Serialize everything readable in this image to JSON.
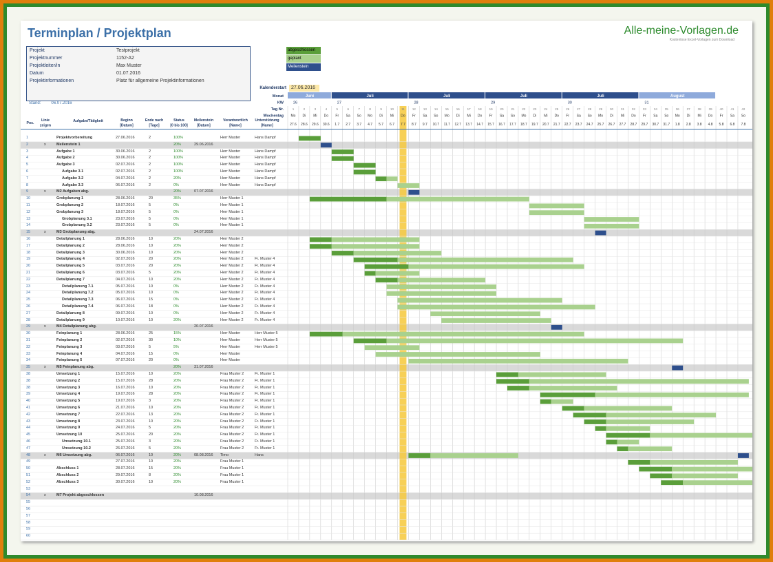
{
  "title": "Terminplan / Projektplan",
  "brand": "Alle-meine-Vorlagen.de",
  "brand_sub": "Kostenlose Excel-Vorlagen zum Download",
  "info": [
    {
      "k": "Projekt",
      "v": "Testprojekt"
    },
    {
      "k": "Projektnummer",
      "v": "1152-A2"
    },
    {
      "k": "Projektleiter/in",
      "v": "Max Muster"
    },
    {
      "k": "Datum",
      "v": "01.07.2016"
    },
    {
      "k": "Projektinformationen",
      "v": "Platz für allgemeine Projektinformationen"
    }
  ],
  "stand_label": "Stand:",
  "stand_value": "06.07.2016",
  "legend": {
    "done": "abgeschlossen",
    "planned": "geplant",
    "milestone": "Meilenstein"
  },
  "kalenderstart_label": "Kalenderstart",
  "kalenderstart_value": "27.06.2016",
  "row_labels": {
    "monat": "Monat",
    "kw": "KW",
    "tag": "Tag Nr.",
    "wochentag": "Wochentag"
  },
  "headers": [
    "Pos.",
    "Linie zeigen",
    "Aufgabe/Tätigkeit",
    "Beginn [Datum]",
    "Ende nach [Tage]",
    "Status [0 bis 100]",
    "Meilenstein [Datum]",
    "Verantwortlich [Name]",
    "Unterstützung [Name]"
  ],
  "months": [
    {
      "name": "Juni",
      "days": 4
    },
    {
      "name": "Juli",
      "days": 7
    },
    {
      "name": "Juli",
      "days": 7
    },
    {
      "name": "Juli",
      "days": 7
    },
    {
      "name": "Juli",
      "days": 7
    },
    {
      "name": "August",
      "days": 7
    }
  ],
  "kw": [
    "26",
    "27",
    "28",
    "29",
    "30",
    "31"
  ],
  "days": [
    {
      "n": "1",
      "w": "Mo",
      "d": "27.6"
    },
    {
      "n": "2",
      "w": "Di",
      "d": "28.6"
    },
    {
      "n": "3",
      "w": "Mi",
      "d": "29.6"
    },
    {
      "n": "4",
      "w": "Do",
      "d": "30.6"
    },
    {
      "n": "5",
      "w": "Fr",
      "d": "1.7"
    },
    {
      "n": "6",
      "w": "Sa",
      "d": "2.7"
    },
    {
      "n": "7",
      "w": "So",
      "d": "3.7"
    },
    {
      "n": "8",
      "w": "Mo",
      "d": "4.7"
    },
    {
      "n": "9",
      "w": "Di",
      "d": "5.7"
    },
    {
      "n": "10",
      "w": "Mi",
      "d": "6.7"
    },
    {
      "n": "11",
      "w": "Do",
      "d": "7.7"
    },
    {
      "n": "12",
      "w": "Fr",
      "d": "8.7"
    },
    {
      "n": "13",
      "w": "Sa",
      "d": "9.7"
    },
    {
      "n": "14",
      "w": "So",
      "d": "10.7"
    },
    {
      "n": "15",
      "w": "Mo",
      "d": "11.7"
    },
    {
      "n": "16",
      "w": "Di",
      "d": "12.7"
    },
    {
      "n": "17",
      "w": "Mi",
      "d": "13.7"
    },
    {
      "n": "18",
      "w": "Do",
      "d": "14.7"
    },
    {
      "n": "19",
      "w": "Fr",
      "d": "15.7"
    },
    {
      "n": "20",
      "w": "Sa",
      "d": "16.7"
    },
    {
      "n": "21",
      "w": "So",
      "d": "17.7"
    },
    {
      "n": "22",
      "w": "Mo",
      "d": "18.7"
    },
    {
      "n": "23",
      "w": "Di",
      "d": "19.7"
    },
    {
      "n": "24",
      "w": "Mi",
      "d": "20.7"
    },
    {
      "n": "25",
      "w": "Do",
      "d": "21.7"
    },
    {
      "n": "26",
      "w": "Fr",
      "d": "22.7"
    },
    {
      "n": "27",
      "w": "Sa",
      "d": "23.7"
    },
    {
      "n": "28",
      "w": "So",
      "d": "24.7"
    },
    {
      "n": "29",
      "w": "Mo",
      "d": "25.7"
    },
    {
      "n": "30",
      "w": "Di",
      "d": "26.7"
    },
    {
      "n": "31",
      "w": "Mi",
      "d": "27.7"
    },
    {
      "n": "32",
      "w": "Do",
      "d": "28.7"
    },
    {
      "n": "33",
      "w": "Fr",
      "d": "29.7"
    },
    {
      "n": "34",
      "w": "Sa",
      "d": "30.7"
    },
    {
      "n": "35",
      "w": "So",
      "d": "31.7"
    },
    {
      "n": "36",
      "w": "Mo",
      "d": "1.8"
    },
    {
      "n": "37",
      "w": "Di",
      "d": "2.8"
    },
    {
      "n": "38",
      "w": "Mi",
      "d": "3.8"
    },
    {
      "n": "39",
      "w": "Do",
      "d": "4.8"
    },
    {
      "n": "40",
      "w": "Fr",
      "d": "5.8"
    },
    {
      "n": "41",
      "w": "Sa",
      "d": "6.8"
    },
    {
      "n": "42",
      "w": "So",
      "d": "7.8"
    }
  ],
  "today_index": 10,
  "rows": [
    {
      "p": "1",
      "t": "Projektvorbereitung",
      "b": "27.06.2016",
      "e": "2",
      "s": "100%",
      "v": "Herr Muster",
      "u": "Hans Dampf",
      "bars": [
        [
          1,
          2,
          "d"
        ]
      ]
    },
    {
      "p": "2",
      "x": "x",
      "t": "Meilenstein 1",
      "s": "20%",
      "m": "29.06.2016",
      "ms": 1,
      "bars": [
        [
          3,
          1,
          "m"
        ]
      ]
    },
    {
      "p": "3",
      "t": "Aufgabe 1",
      "b": "30.06.2016",
      "e": "2",
      "s": "100%",
      "v": "Herr Muster",
      "u": "Hans Dampf",
      "bars": [
        [
          4,
          2,
          "d"
        ]
      ]
    },
    {
      "p": "4",
      "t": "Aufgabe 2",
      "b": "30.06.2016",
      "e": "2",
      "s": "100%",
      "v": "Herr Muster",
      "u": "Hans Dampf",
      "bars": [
        [
          4,
          2,
          "d"
        ]
      ]
    },
    {
      "p": "5",
      "t": "Aufgabe 3",
      "b": "02.07.2016",
      "e": "2",
      "s": "100%",
      "v": "Herr Muster",
      "u": "Hans Dampf",
      "bars": [
        [
          6,
          2,
          "d"
        ]
      ]
    },
    {
      "p": "6",
      "i": 1,
      "t": "Aufgabe 3.1",
      "b": "02.07.2016",
      "e": "2",
      "s": "100%",
      "v": "Herr Muster",
      "u": "Hans Dampf",
      "bars": [
        [
          6,
          2,
          "d"
        ]
      ]
    },
    {
      "p": "7",
      "i": 1,
      "t": "Aufgabe 3.2",
      "b": "04.07.2016",
      "e": "2",
      "s": "20%",
      "v": "Herr Muster",
      "u": "Hans Dampf",
      "bars": [
        [
          8,
          1,
          "d"
        ],
        [
          9,
          1,
          "p"
        ]
      ]
    },
    {
      "p": "8",
      "i": 1,
      "t": "Aufgabe 3.3",
      "b": "06.07.2016",
      "e": "2",
      "s": "0%",
      "v": "Herr Muster",
      "u": "Hans Dampf",
      "bars": [
        [
          10,
          2,
          "p"
        ]
      ]
    },
    {
      "p": "9",
      "x": "x",
      "t": "M2 Aufgaben abg.",
      "s": "20%",
      "m": "07.07.2016",
      "ms": 1,
      "bars": [
        [
          11,
          1,
          "m"
        ]
      ]
    },
    {
      "p": "10",
      "t": "Grobplanung 1",
      "b": "28.06.2016",
      "e": "20",
      "s": "35%",
      "v": "Herr Muster 1",
      "bars": [
        [
          2,
          7,
          "d"
        ],
        [
          9,
          13,
          "p"
        ]
      ]
    },
    {
      "p": "11",
      "t": "Grobplanung 2",
      "b": "18.07.2016",
      "e": "5",
      "s": "0%",
      "v": "Herr Muster 1",
      "bars": [
        [
          22,
          5,
          "p"
        ]
      ]
    },
    {
      "p": "12",
      "t": "Grobplanung 3",
      "b": "18.07.2016",
      "e": "5",
      "s": "0%",
      "v": "Herr Muster 1",
      "bars": [
        [
          22,
          5,
          "p"
        ]
      ]
    },
    {
      "p": "13",
      "i": 1,
      "t": "Grobplanung 3.1",
      "b": "23.07.2016",
      "e": "5",
      "s": "0%",
      "v": "Herr Muster 1",
      "bars": [
        [
          27,
          5,
          "p"
        ]
      ]
    },
    {
      "p": "14",
      "i": 1,
      "t": "Grobplanung 3.2",
      "b": "23.07.2016",
      "e": "5",
      "s": "0%",
      "v": "Herr Muster 1",
      "bars": [
        [
          27,
          5,
          "p"
        ]
      ]
    },
    {
      "p": "15",
      "x": "x",
      "t": "M3 Grobplanung abg.",
      "m": "24.07.2016",
      "ms": 1,
      "bars": [
        [
          28,
          1,
          "m"
        ]
      ]
    },
    {
      "p": "16",
      "t": "Detailplanung 1",
      "b": "28.06.2016",
      "e": "10",
      "s": "20%",
      "v": "Herr Muster 2",
      "bars": [
        [
          2,
          2,
          "d"
        ],
        [
          4,
          8,
          "p"
        ]
      ]
    },
    {
      "p": "17",
      "t": "Detailplanung 2",
      "b": "28.06.2016",
      "e": "10",
      "s": "20%",
      "v": "Herr Muster 2",
      "bars": [
        [
          2,
          2,
          "d"
        ],
        [
          4,
          8,
          "p"
        ]
      ]
    },
    {
      "p": "18",
      "t": "Detailplanung 3",
      "b": "30.06.2016",
      "e": "10",
      "s": "20%",
      "v": "Herr Muster 2",
      "bars": [
        [
          4,
          2,
          "d"
        ],
        [
          6,
          8,
          "p"
        ]
      ]
    },
    {
      "p": "19",
      "t": "Detailplanung 4",
      "b": "02.07.2016",
      "e": "20",
      "s": "20%",
      "v": "Herr Muster 2",
      "u": "Fr. Muster 4",
      "bars": [
        [
          6,
          4,
          "d"
        ],
        [
          10,
          16,
          "p"
        ]
      ]
    },
    {
      "p": "20",
      "t": "Detailplanung 5",
      "b": "03.07.2016",
      "e": "20",
      "s": "20%",
      "v": "Herr Muster 2",
      "u": "Fr. Muster 4",
      "bars": [
        [
          7,
          4,
          "d"
        ],
        [
          11,
          16,
          "p"
        ]
      ]
    },
    {
      "p": "21",
      "t": "Detailplanung 6",
      "b": "03.07.2016",
      "e": "5",
      "s": "20%",
      "v": "Herr Muster 2",
      "u": "Fr. Muster 4",
      "bars": [
        [
          7,
          1,
          "d"
        ],
        [
          8,
          4,
          "p"
        ]
      ]
    },
    {
      "p": "22",
      "t": "Detailplanung 7",
      "b": "04.07.2016",
      "e": "10",
      "s": "20%",
      "v": "Herr Muster 2",
      "u": "Fr. Muster 4",
      "bars": [
        [
          8,
          2,
          "d"
        ],
        [
          10,
          8,
          "p"
        ]
      ]
    },
    {
      "p": "23",
      "i": 1,
      "t": "Detailplanung 7.1",
      "b": "05.07.2016",
      "e": "10",
      "s": "0%",
      "v": "Herr Muster 2",
      "u": "Fr. Muster 4",
      "bars": [
        [
          9,
          10,
          "p"
        ]
      ]
    },
    {
      "p": "24",
      "i": 1,
      "t": "Detailplanung 7.2",
      "b": "05.07.2016",
      "e": "10",
      "s": "0%",
      "v": "Herr Muster 2",
      "u": "Fr. Muster 4",
      "bars": [
        [
          9,
          10,
          "p"
        ]
      ]
    },
    {
      "p": "25",
      "i": 1,
      "t": "Detailplanung 7.3",
      "b": "06.07.2016",
      "e": "15",
      "s": "0%",
      "v": "Herr Muster 2",
      "u": "Fr. Muster 4",
      "bars": [
        [
          10,
          15,
          "p"
        ]
      ]
    },
    {
      "p": "26",
      "i": 1,
      "t": "Detailplanung 7.4",
      "b": "06.07.2016",
      "e": "18",
      "s": "0%",
      "v": "Herr Muster 2",
      "u": "Fr. Muster 4",
      "bars": [
        [
          10,
          18,
          "p"
        ]
      ]
    },
    {
      "p": "27",
      "t": "Detailplanung 8",
      "b": "09.07.2016",
      "e": "10",
      "s": "0%",
      "v": "Herr Muster 2",
      "u": "Fr. Muster 4",
      "bars": [
        [
          13,
          10,
          "p"
        ]
      ]
    },
    {
      "p": "28",
      "t": "Detailplanung 9",
      "b": "10.07.2016",
      "e": "10",
      "s": "20%",
      "v": "Herr Muster 2",
      "u": "Fr. Muster 4",
      "bars": [
        [
          14,
          10,
          "p"
        ]
      ]
    },
    {
      "p": "29",
      "x": "x",
      "t": "M4 Detailplanung abg.",
      "m": "20.07.2016",
      "ms": 1,
      "bars": [
        [
          24,
          1,
          "m"
        ]
      ]
    },
    {
      "p": "30",
      "t": "Feinplanung 1",
      "b": "28.06.2016",
      "e": "25",
      "s": "15%",
      "v": "Herr Muster",
      "u": "Herr Muster 5",
      "bars": [
        [
          2,
          3,
          "d"
        ],
        [
          5,
          22,
          "p"
        ]
      ]
    },
    {
      "p": "31",
      "t": "Feinplanung 2",
      "b": "02.07.2016",
      "e": "30",
      "s": "10%",
      "v": "Herr Muster",
      "u": "Herr Muster 5",
      "bars": [
        [
          6,
          3,
          "d"
        ],
        [
          9,
          27,
          "p"
        ]
      ]
    },
    {
      "p": "32",
      "t": "Feinplanung 3",
      "b": "03.07.2016",
      "e": "5",
      "s": "5%",
      "v": "Herr Muster",
      "u": "Herr Muster 5",
      "bars": [
        [
          7,
          5,
          "p"
        ]
      ]
    },
    {
      "p": "33",
      "t": "Feinplanung 4",
      "b": "04.07.2016",
      "e": "15",
      "s": "0%",
      "v": "Herr Muster",
      "bars": [
        [
          8,
          15,
          "p"
        ]
      ]
    },
    {
      "p": "34",
      "t": "Feinplanung 5",
      "b": "07.07.2016",
      "e": "20",
      "s": "0%",
      "v": "Herr Muster",
      "bars": [
        [
          11,
          20,
          "p"
        ]
      ]
    },
    {
      "p": "35",
      "x": "x",
      "t": "M5 Feinplanung abg.",
      "s": "20%",
      "m": "31.07.2016",
      "ms": 1,
      "bars": [
        [
          35,
          1,
          "m"
        ]
      ]
    },
    {
      "p": "38",
      "t": "Umsetzung 1",
      "b": "15.07.2016",
      "e": "10",
      "s": "20%",
      "v": "Frau Muster 2",
      "u": "Fr. Muster 1",
      "bars": [
        [
          19,
          2,
          "d"
        ],
        [
          21,
          8,
          "p"
        ]
      ]
    },
    {
      "p": "38",
      "t": "Umsetzung 2",
      "b": "15.07.2016",
      "e": "28",
      "s": "20%",
      "v": "Frau Muster 2",
      "u": "Fr. Muster 1",
      "bars": [
        [
          19,
          3,
          "d"
        ],
        [
          22,
          20,
          "p"
        ]
      ]
    },
    {
      "p": "38",
      "t": "Umsetzung 3",
      "b": "16.07.2016",
      "e": "10",
      "s": "20%",
      "v": "Frau Muster 2",
      "u": "Fr. Muster 1",
      "bars": [
        [
          20,
          2,
          "d"
        ],
        [
          22,
          8,
          "p"
        ]
      ]
    },
    {
      "p": "39",
      "t": "Umsetzung 4",
      "b": "19.07.2016",
      "e": "28",
      "s": "20%",
      "v": "Frau Muster 2",
      "u": "Fr. Muster 1",
      "bars": [
        [
          23,
          5,
          "d"
        ],
        [
          28,
          14,
          "p"
        ]
      ]
    },
    {
      "p": "40",
      "t": "Umsetzung 5",
      "b": "19.07.2016",
      "e": "3",
      "s": "20%",
      "v": "Frau Muster 2",
      "u": "Fr. Muster 1",
      "bars": [
        [
          23,
          1,
          "d"
        ],
        [
          24,
          2,
          "p"
        ]
      ]
    },
    {
      "p": "41",
      "t": "Umsetzung 6",
      "b": "21.07.2016",
      "e": "10",
      "s": "20%",
      "v": "Frau Muster 2",
      "u": "Fr. Muster 1",
      "bars": [
        [
          25,
          2,
          "d"
        ],
        [
          27,
          8,
          "p"
        ]
      ]
    },
    {
      "p": "42",
      "t": "Umsetzung 7",
      "b": "22.07.2016",
      "e": "13",
      "s": "20%",
      "v": "Frau Muster 2",
      "u": "Fr. Muster 1",
      "bars": [
        [
          26,
          3,
          "d"
        ],
        [
          29,
          10,
          "p"
        ]
      ]
    },
    {
      "p": "43",
      "t": "Umsetzung 8",
      "b": "23.07.2016",
      "e": "10",
      "s": "20%",
      "v": "Frau Muster 2",
      "u": "Fr. Muster 1",
      "bars": [
        [
          27,
          2,
          "d"
        ],
        [
          29,
          8,
          "p"
        ]
      ]
    },
    {
      "p": "44",
      "t": "Umsetzung 9",
      "b": "24.07.2016",
      "e": "5",
      "s": "20%",
      "v": "Frau Muster 2",
      "u": "Fr. Muster 1",
      "bars": [
        [
          28,
          1,
          "d"
        ],
        [
          29,
          4,
          "p"
        ]
      ]
    },
    {
      "p": "45",
      "t": "Umsetzung 10",
      "b": "25.07.2016",
      "e": "20",
      "s": "20%",
      "v": "Frau Muster 2",
      "u": "Fr. Muster 1",
      "bars": [
        [
          29,
          4,
          "d"
        ],
        [
          33,
          16,
          "p"
        ]
      ]
    },
    {
      "p": "46",
      "i": 1,
      "t": "Umsetzung 10.1",
      "b": "25.07.2016",
      "e": "3",
      "s": "20%",
      "v": "Frau Muster 2",
      "u": "Fr. Muster 1",
      "bars": [
        [
          29,
          1,
          "d"
        ],
        [
          30,
          2,
          "p"
        ]
      ]
    },
    {
      "p": "47",
      "i": 1,
      "t": "Umsetzung 10.2",
      "b": "26.07.2016",
      "e": "5",
      "s": "20%",
      "v": "Frau Muster 2",
      "u": "Fr. Muster 1",
      "bars": [
        [
          30,
          1,
          "d"
        ],
        [
          31,
          4,
          "p"
        ]
      ]
    },
    {
      "p": "48",
      "x": "x",
      "t": "M6 Umsetzung abg.",
      "b": "06.07.2016",
      "e": "10",
      "s": "20%",
      "m": "08.08.2016",
      "v": "Timo",
      "u": "Hans",
      "ms": 1,
      "bars": [
        [
          11,
          2,
          "d"
        ],
        [
          13,
          8,
          "p"
        ],
        [
          41,
          1,
          "m"
        ]
      ]
    },
    {
      "p": "49",
      "b": "27.07.2016",
      "e": "10",
      "s": "20%",
      "v": "Frau Muster 1",
      "bars": [
        [
          31,
          2,
          "d"
        ],
        [
          33,
          8,
          "p"
        ]
      ]
    },
    {
      "p": "50",
      "t": "Abschluss 1",
      "b": "28.07.2016",
      "e": "15",
      "s": "20%",
      "v": "Frau Muster 1",
      "bars": [
        [
          32,
          3,
          "d"
        ],
        [
          35,
          12,
          "p"
        ]
      ]
    },
    {
      "p": "51",
      "t": "Abschluss 2",
      "b": "29.07.2016",
      "e": "8",
      "s": "20%",
      "v": "Frau Muster 1",
      "bars": [
        [
          33,
          2,
          "d"
        ],
        [
          35,
          6,
          "p"
        ]
      ]
    },
    {
      "p": "52",
      "t": "Abschluss 3",
      "b": "30.07.2016",
      "e": "10",
      "s": "20%",
      "v": "Frau Muster 1",
      "bars": [
        [
          34,
          2,
          "d"
        ],
        [
          36,
          8,
          "p"
        ]
      ]
    },
    {
      "p": "53"
    },
    {
      "p": "54",
      "x": "x",
      "t": "M7 Projekt abgeschlossen",
      "m": "10.08.2016",
      "ms": 1,
      "bars": []
    },
    {
      "p": "55"
    },
    {
      "p": "56"
    },
    {
      "p": "57"
    },
    {
      "p": "58"
    },
    {
      "p": "59"
    },
    {
      "p": "60"
    }
  ],
  "colors": {
    "done": "#5a9e3a",
    "planned": "#a9d18e",
    "milestone": "#2e4f8c",
    "today": "#f6c83a",
    "monthbar": "#2e4f8c",
    "monthlight": "#8eaadb"
  }
}
